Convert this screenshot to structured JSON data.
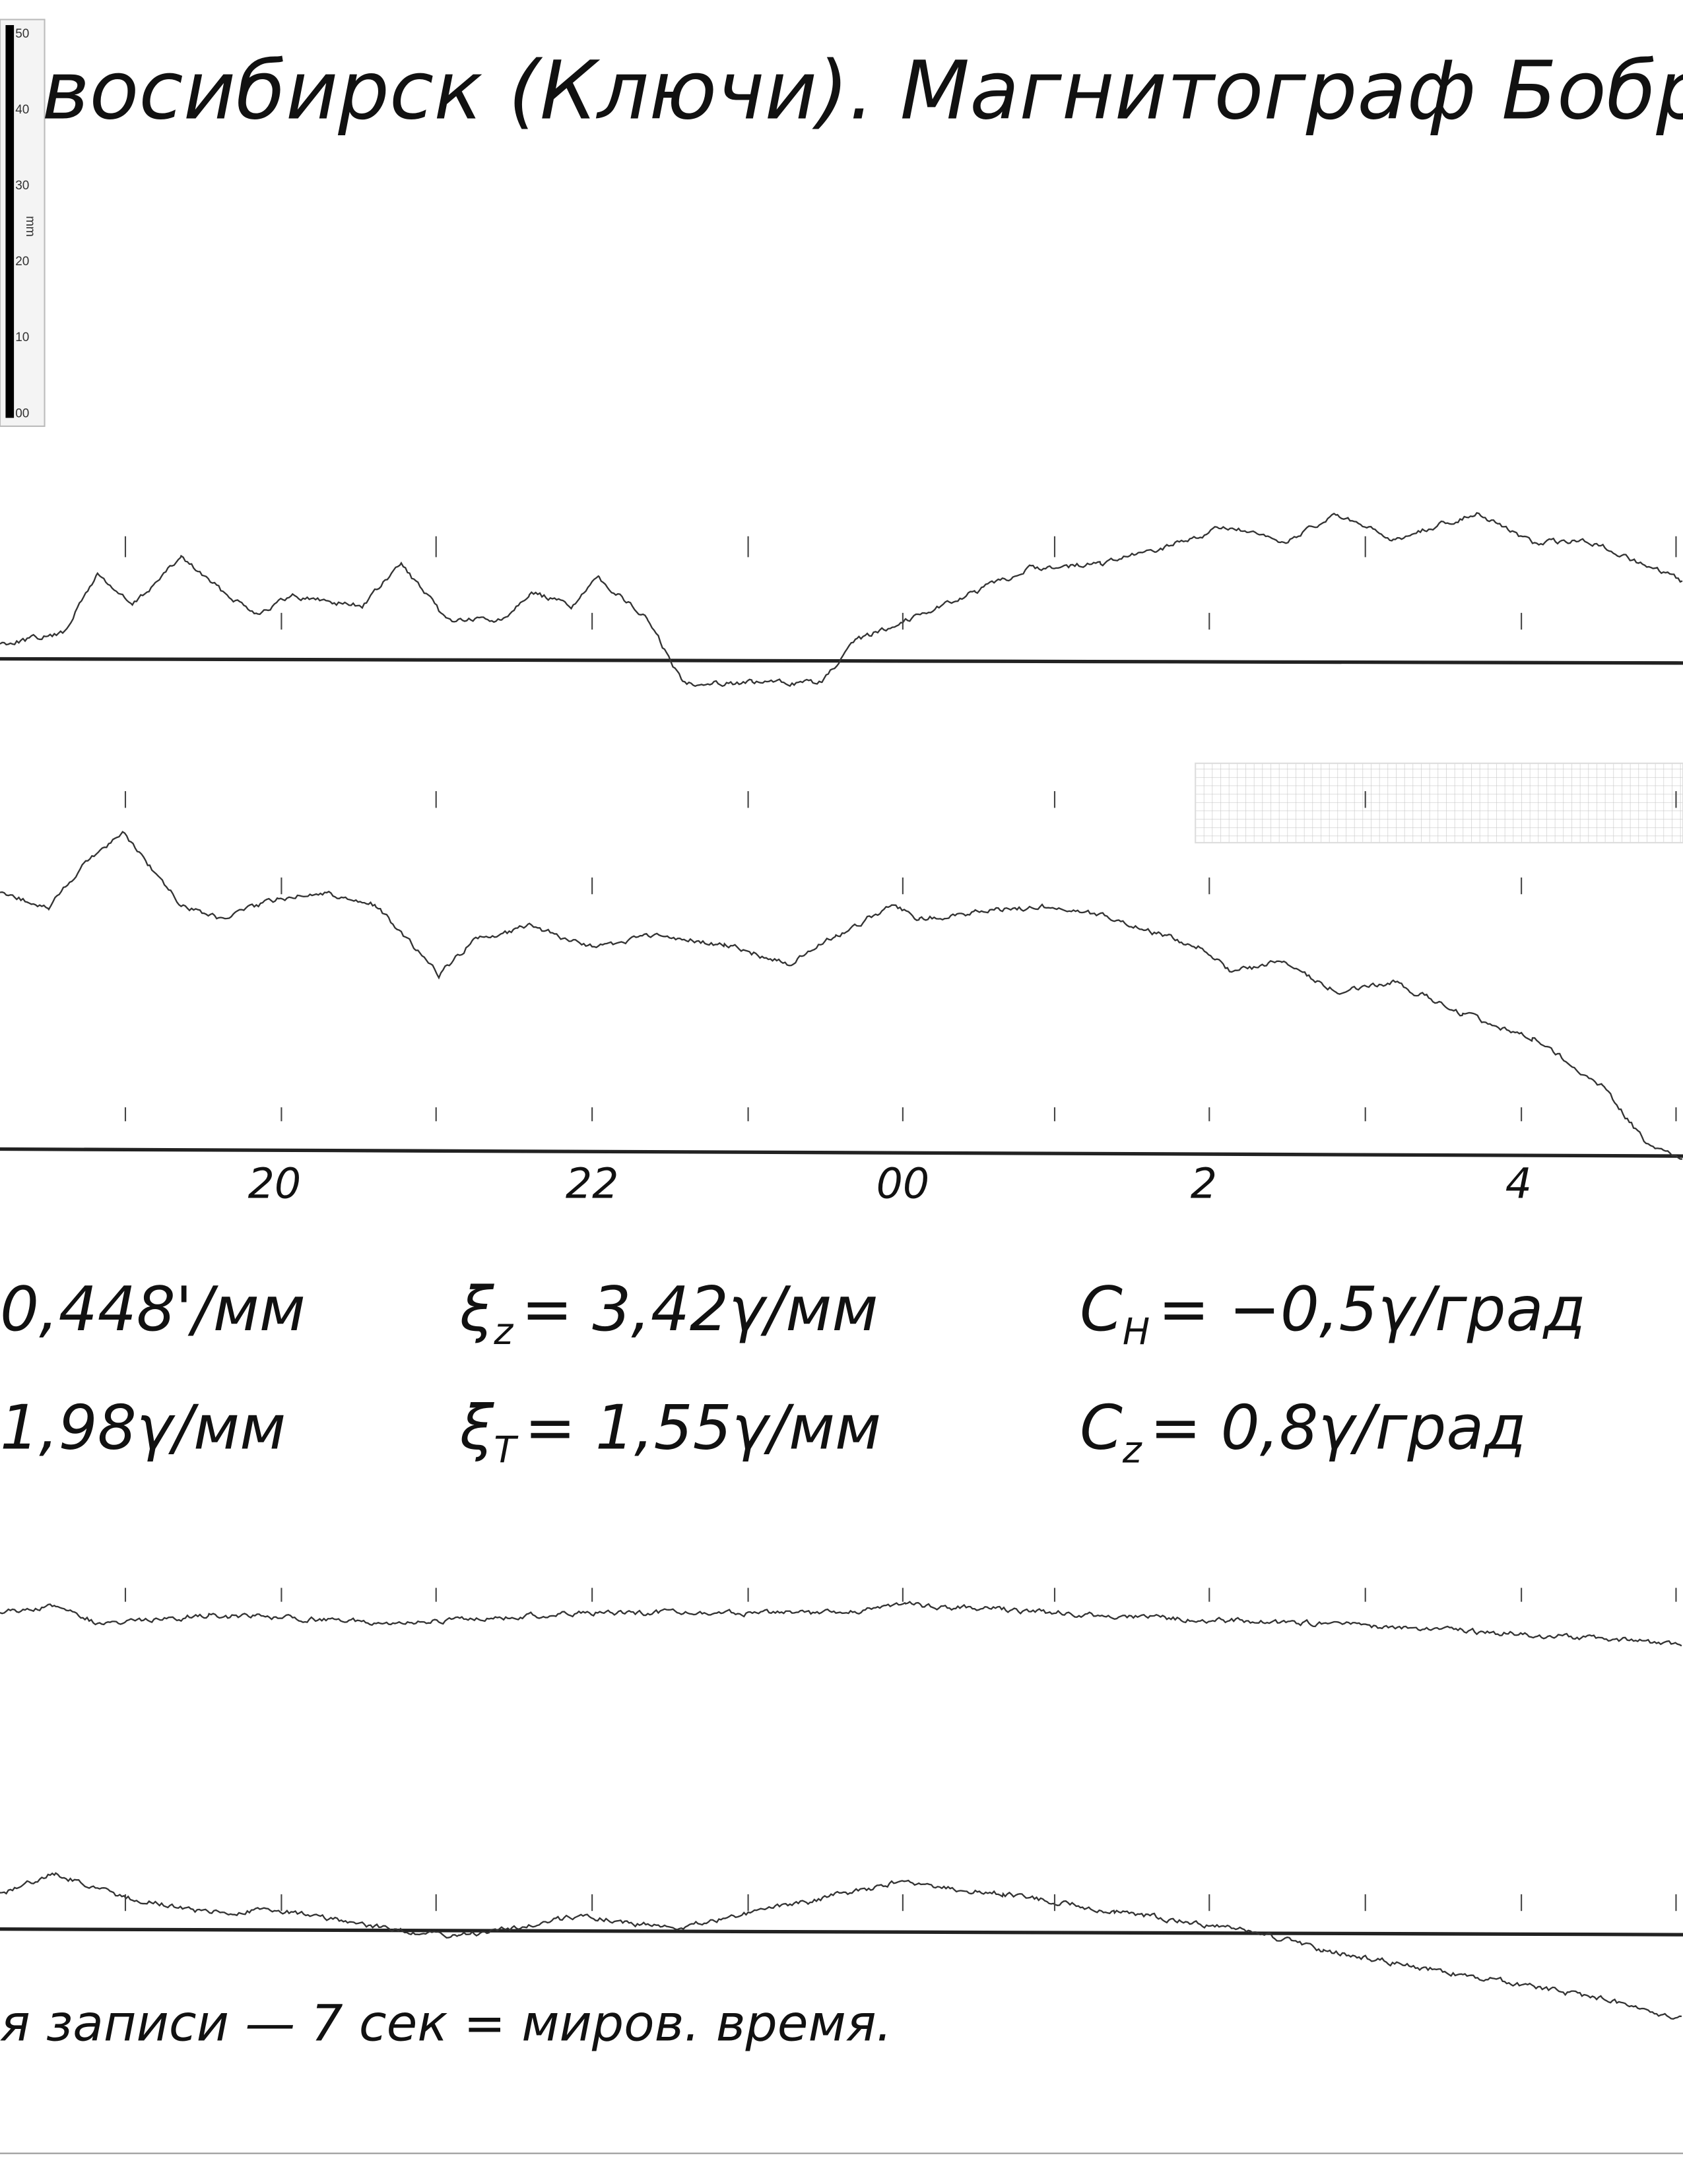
{
  "header": {
    "title": "восибирск (Ключи).  Магнитограф  Бобров"
  },
  "ruler": {
    "labels": [
      "50",
      "40",
      "30",
      "20",
      "10",
      "00"
    ],
    "unit": "mm"
  },
  "time_axis": {
    "labels": [
      "20",
      "22",
      "00",
      "2",
      "4"
    ]
  },
  "constants": [
    {
      "symbol": "",
      "subscript": "",
      "text": "0,448'/мм"
    },
    {
      "symbol": "ξ",
      "subscript": "z",
      "text": "= 3,42γ/мм"
    },
    {
      "symbol": "C",
      "subscript": "H",
      "text": "= −0,5γ/град"
    },
    {
      "symbol": "",
      "subscript": "",
      "text": "1,98γ/мм"
    },
    {
      "symbol": "ξ",
      "subscript": "T",
      "text": "= 1,55γ/мм"
    },
    {
      "symbol": "C",
      "subscript": "z",
      "text": "= 0,8γ/град"
    }
  ],
  "footer": {
    "note": "я  записи — 7 сек = миров. время."
  }
}
